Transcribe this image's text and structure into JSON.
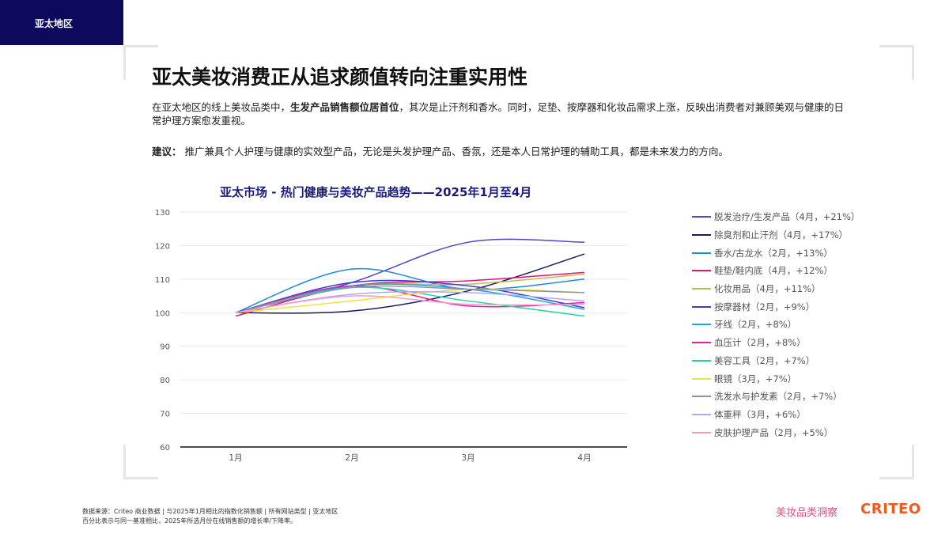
{
  "header": {
    "region": "亚太地区",
    "title": "亚太美妆消费正从追求颜值转向注重实用性",
    "desc_pre": "在亚太地区的线上美妆品类中，",
    "desc_bold": "生发产品销售额位居首位",
    "desc_post": "，其次是止汗剂和香水。同时，足垫、按摩器和化妆品需求上涨，反映出消费者对兼顾美观与健康的日常护理方案愈发重视。",
    "rec_label": "建议：",
    "rec_text": "推广兼具个人护理与健康的实效型产品，无论是头发护理产品、香氛，还是本人日常护理的辅助工具，都是未来发力的方向。"
  },
  "chart_data": {
    "type": "line",
    "title": "亚太市场 - 热门健康与美妆产品趋势——2025年1月至4月",
    "categories": [
      "1月",
      "2月",
      "3月",
      "4月"
    ],
    "ylim": [
      60,
      130
    ],
    "yticks": [
      60,
      70,
      80,
      90,
      100,
      110,
      120,
      130
    ],
    "grid": true,
    "legend": "right",
    "series": [
      {
        "name": "脱发治疗/生发产品（4月，+21%）",
        "color": "#5b3fd0",
        "values": [
          100,
          109,
          121,
          121
        ]
      },
      {
        "name": "除臭剂和止汗剂（4月，+17%）",
        "color": "#1a1a5e",
        "values": [
          100,
          100.5,
          106.5,
          117.5
        ]
      },
      {
        "name": "香水/古龙水（2月，+13%）",
        "color": "#1f8ad6",
        "values": [
          100,
          113,
          107,
          110
        ]
      },
      {
        "name": "鞋垫/鞋内底（4月，+12%）",
        "color": "#e0157a",
        "values": [
          99,
          108,
          109.5,
          112
        ]
      },
      {
        "name": "化妆用品（4月，+11%）",
        "color": "#c9b84a",
        "values": [
          100,
          108,
          108.5,
          111.5
        ]
      },
      {
        "name": "按摩器材（2月，+9%）",
        "color": "#3b3bd6",
        "values": [
          100,
          109,
          108,
          101.5
        ]
      },
      {
        "name": "牙线（2月，+8%）",
        "color": "#1fa6e8",
        "values": [
          100,
          108,
          107,
          101
        ]
      },
      {
        "name": "血压计（2月，+8%）",
        "color": "#e020a0",
        "values": [
          100,
          108,
          102,
          103
        ]
      },
      {
        "name": "美容工具（2月，+7%）",
        "color": "#1fd6a0",
        "values": [
          100,
          107.5,
          103.5,
          99
        ]
      },
      {
        "name": "眼镜（3月，+7%）",
        "color": "#f0e040",
        "values": [
          100,
          103.5,
          107,
          106
        ]
      },
      {
        "name": "洗发水与护发素（2月，+7%）",
        "color": "#9090b0",
        "values": [
          100,
          107.5,
          107,
          106
        ]
      },
      {
        "name": "体重秤（3月，+6%）",
        "color": "#b0a8f0",
        "values": [
          100,
          105.5,
          106,
          103.5
        ]
      },
      {
        "name": "皮肤护理产品（2月，+5%）",
        "color": "#f0a0c8",
        "values": [
          100,
          105,
          102.5,
          102.5
        ]
      }
    ]
  },
  "footer": {
    "source": "数据来源：Criteo 商业数据 | 与2025年1月相比的指数化销售额 | 所有网站类型 | 亚太地区",
    "note": "百分比表示与同一基准相比，2025年所选月份在线销售额的增长率/下降率。",
    "brand": "美妆品类洞察",
    "logo": "CRITEO"
  }
}
